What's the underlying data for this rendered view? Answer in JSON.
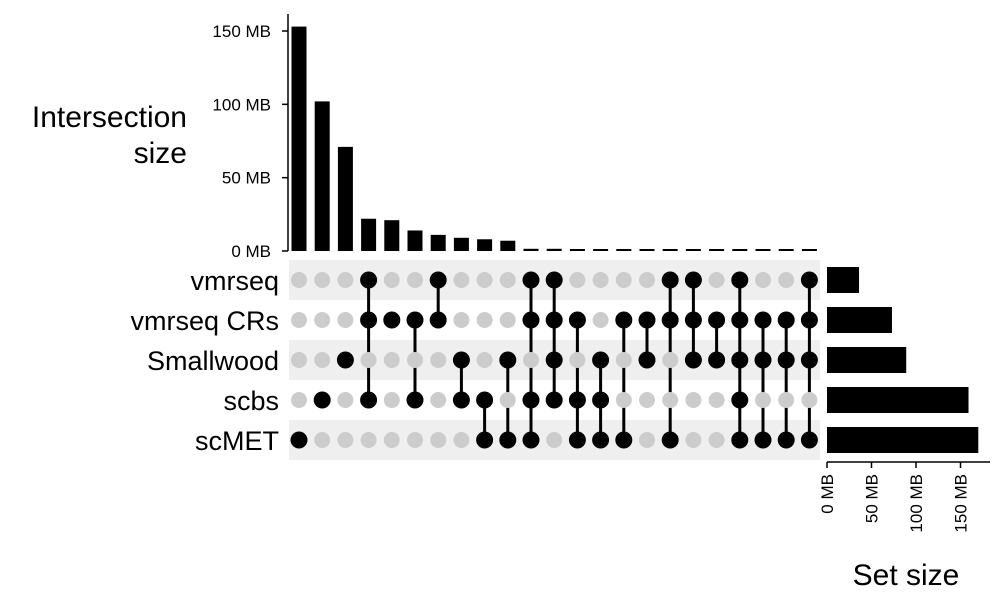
{
  "chart_data": [
    {
      "type": "bar",
      "role": "intersection-size",
      "ylabel": [
        "Intersection",
        "size"
      ],
      "ylim": [
        0,
        160
      ],
      "yticks": [
        0,
        50,
        100,
        150
      ],
      "ytick_labels": [
        "0 MB",
        "50 MB",
        "100 MB",
        "150 MB"
      ],
      "unit": "MB",
      "values": [
        153,
        102,
        71,
        22,
        21,
        14,
        11,
        9,
        8,
        7,
        1.5,
        1.5,
        1,
        1,
        1,
        1,
        1,
        1,
        1,
        1,
        1,
        1,
        1
      ],
      "color": "#000000"
    },
    {
      "type": "bar",
      "orientation": "horizontal",
      "role": "set-size",
      "xlabel": "Set size",
      "xlim": [
        0,
        180
      ],
      "xticks": [
        0,
        50,
        100,
        150
      ],
      "xtick_labels": [
        "0 MB",
        "50 MB",
        "100 MB",
        "150 MB"
      ],
      "unit": "MB",
      "sets": [
        "vmrseq",
        "vmrseq CRs",
        "Smallwood",
        "scbs",
        "scMET"
      ],
      "values": [
        36,
        73,
        89,
        159,
        170
      ],
      "color": "#000000"
    },
    {
      "type": "matrix",
      "role": "intersection-membership",
      "sets": [
        "vmrseq",
        "vmrseq CRs",
        "Smallwood",
        "scbs",
        "scMET"
      ],
      "columns": [
        [
          "scMET"
        ],
        [
          "scbs"
        ],
        [
          "Smallwood"
        ],
        [
          "vmrseq",
          "vmrseq CRs",
          "scbs"
        ],
        [
          "vmrseq CRs"
        ],
        [
          "vmrseq CRs",
          "scbs"
        ],
        [
          "vmrseq",
          "vmrseq CRs"
        ],
        [
          "Smallwood",
          "scbs"
        ],
        [
          "scbs",
          "scMET"
        ],
        [
          "Smallwood",
          "scMET"
        ],
        [
          "vmrseq",
          "vmrseq CRs",
          "scbs",
          "scMET"
        ],
        [
          "vmrseq",
          "vmrseq CRs",
          "Smallwood",
          "scbs"
        ],
        [
          "vmrseq CRs",
          "scbs",
          "scMET"
        ],
        [
          "Smallwood",
          "scbs",
          "scMET"
        ],
        [
          "vmrseq CRs",
          "scMET"
        ],
        [
          "vmrseq CRs",
          "Smallwood"
        ],
        [
          "vmrseq",
          "vmrseq CRs",
          "scMET"
        ],
        [
          "vmrseq",
          "vmrseq CRs",
          "Smallwood"
        ],
        [
          "vmrseq CRs",
          "Smallwood"
        ],
        [
          "vmrseq",
          "vmrseq CRs",
          "Smallwood",
          "scbs",
          "scMET"
        ],
        [
          "vmrseq CRs",
          "Smallwood",
          "scMET"
        ],
        [
          "vmrseq CRs",
          "Smallwood",
          "scMET"
        ],
        [
          "vmrseq",
          "vmrseq CRs",
          "Smallwood",
          "scMET"
        ]
      ],
      "colors": {
        "active_dot": "#000000",
        "inactive_dot": "#cccccc",
        "stripe": "#efefef"
      }
    }
  ]
}
